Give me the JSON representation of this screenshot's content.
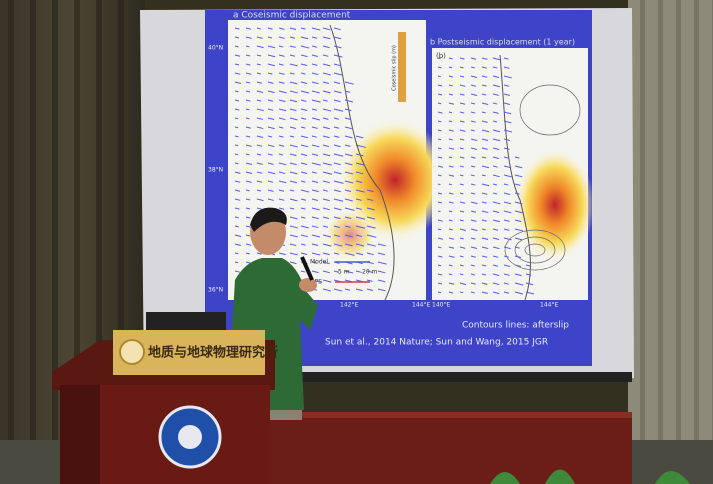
{
  "slide": {
    "panel_a_title": "a Coseismic displacement",
    "panel_b_title": "b Postseismic displacement (1 year)",
    "panel_b_label": "(b)",
    "colorbar_title": "Coseismic slip (m)",
    "lat_labels": [
      "40°N",
      "38°N",
      "36°N"
    ],
    "lon_labels_a": [
      "142°E",
      "144°E"
    ],
    "lon_labels_b": [
      "140°E",
      "144°E"
    ],
    "legend": [
      "Model",
      "5 m",
      "20 m",
      "GPS"
    ],
    "contours_note": "Contours lines: afterslip",
    "citation": "Sun et al., 2014 Nature; Sun and Wang, 2015 JGR"
  },
  "podium": {
    "sign": "地质与地球物理研究所"
  }
}
